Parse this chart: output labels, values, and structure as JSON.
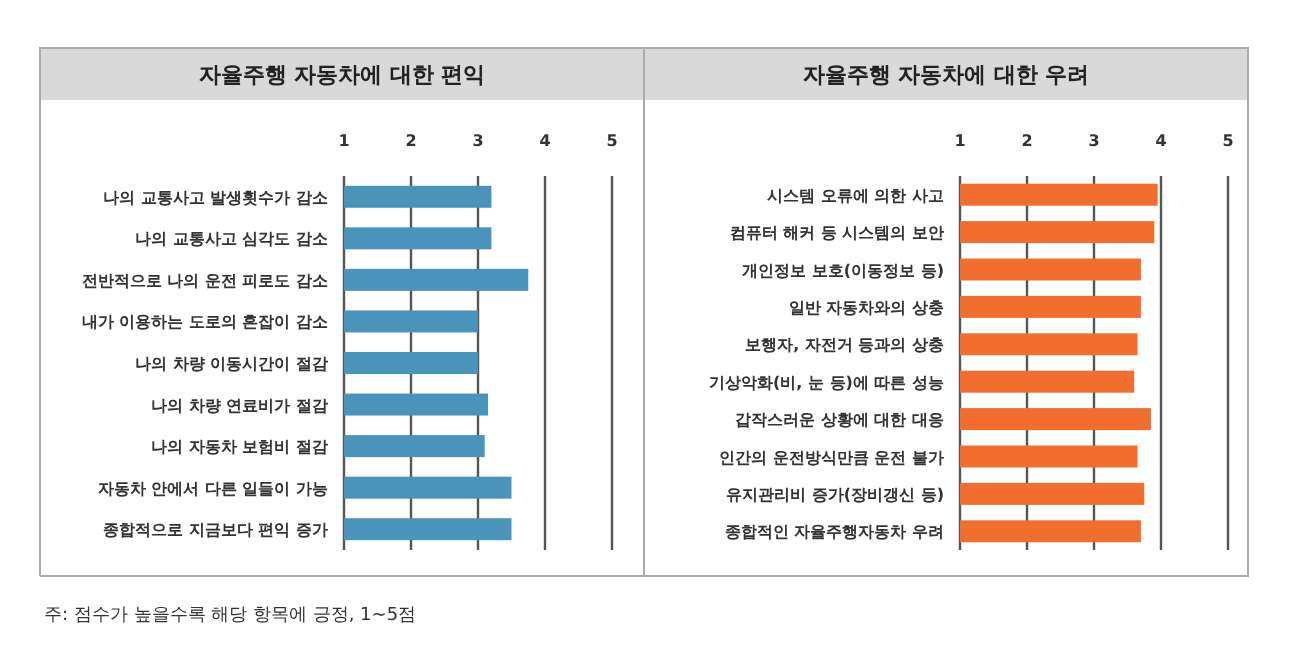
{
  "chart_data": [
    {
      "type": "bar",
      "orientation": "horizontal",
      "title": "자율주행 자동차에 대한 편익",
      "categories": [
        "나의 교통사고 발생횟수가 감소",
        "나의 교통사고 심각도 감소",
        "전반적으로 나의 운전 피로도 감소",
        "내가 이용하는 도로의 혼잡이 감소",
        "나의 차량 이동시간이 절감",
        "나의 차량 연료비가 절감",
        "나의 자동차 보험비 절감",
        "자동차 안에서 다른 일들이 가능",
        "종합적으로 지금보다 편익 증가"
      ],
      "values": [
        3.2,
        3.2,
        3.75,
        3.0,
        3.0,
        3.15,
        3.1,
        3.5,
        3.5
      ],
      "color": "#4a94bb",
      "xlim": [
        1,
        5
      ],
      "xticks": [
        1,
        2,
        3,
        4,
        5
      ],
      "grid": "x",
      "annotations": [
        "주: 점수가 높을수록 해당 항목에 긍정, 1~5점"
      ]
    },
    {
      "type": "bar",
      "orientation": "horizontal",
      "title": "자율주행 자동차에 대한 우려",
      "categories": [
        "시스템 오류에 의한 사고",
        "컴퓨터 해커 등 시스템의 보안",
        "개인정보 보호(이동정보 등)",
        "일반 자동차와의 상충",
        "보행자, 자전거 등과의 상충",
        "기상악화(비, 눈 등)에 따른 성능",
        "갑작스러운 상황에 대한 대응",
        "인간의 운전방식만큼 운전 불가",
        "유지관리비 증가(장비갱신 등)",
        "종합적인 자율주행자동차 우려"
      ],
      "values": [
        3.95,
        3.9,
        3.7,
        3.7,
        3.65,
        3.6,
        3.85,
        3.65,
        3.75,
        3.7
      ],
      "color": "#f26e2f",
      "xlim": [
        1,
        5
      ],
      "xticks": [
        1,
        2,
        3,
        4,
        5
      ],
      "grid": "x"
    }
  ]
}
